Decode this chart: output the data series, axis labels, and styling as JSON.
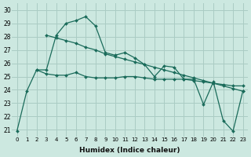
{
  "xlabel": "Humidex (Indice chaleur)",
  "ylabel": "",
  "background_color": "#cce8e0",
  "grid_color": "#aaccc4",
  "line_color": "#1a6b5a",
  "xlim": [
    -0.5,
    23.5
  ],
  "ylim": [
    20.5,
    30.5
  ],
  "xticks": [
    0,
    1,
    2,
    3,
    4,
    5,
    6,
    7,
    8,
    9,
    10,
    11,
    12,
    13,
    14,
    15,
    16,
    17,
    18,
    19,
    20,
    21,
    22,
    23
  ],
  "yticks": [
    21,
    22,
    23,
    24,
    25,
    26,
    27,
    28,
    29,
    30
  ],
  "series": [
    {
      "x": [
        0,
        1,
        2,
        3,
        4,
        5,
        6,
        7,
        8,
        9,
        10,
        11,
        12,
        13,
        14,
        15,
        16,
        17,
        18,
        19,
        20,
        21,
        22,
        23
      ],
      "y": [
        20.9,
        23.9,
        25.5,
        25.5,
        28.1,
        29.0,
        29.2,
        29.5,
        28.8,
        26.8,
        26.6,
        26.8,
        26.4,
        25.9,
        25.0,
        25.8,
        25.7,
        24.8,
        24.8,
        22.9,
        24.6,
        21.7,
        20.9,
        23.9
      ]
    },
    {
      "x": [
        2,
        3,
        4,
        5,
        6,
        7,
        8,
        9,
        10,
        11,
        12,
        13,
        14,
        15,
        16,
        17,
        18,
        19,
        20,
        21,
        22,
        23
      ],
      "y": [
        25.5,
        25.2,
        25.1,
        25.1,
        25.3,
        25.0,
        24.9,
        24.9,
        24.9,
        25.0,
        25.0,
        24.9,
        24.8,
        24.8,
        24.8,
        24.8,
        24.7,
        24.6,
        24.5,
        24.4,
        24.3,
        24.3
      ]
    },
    {
      "x": [
        3,
        4,
        5,
        6,
        7,
        8,
        9,
        10,
        11,
        12,
        13,
        14,
        15,
        16,
        17,
        18,
        19,
        20,
        21,
        22,
        23
      ],
      "y": [
        28.1,
        27.9,
        27.7,
        27.5,
        27.2,
        27.0,
        26.7,
        26.5,
        26.3,
        26.1,
        25.9,
        25.7,
        25.5,
        25.3,
        25.1,
        24.9,
        24.7,
        24.5,
        24.3,
        24.1,
        23.9
      ]
    }
  ]
}
